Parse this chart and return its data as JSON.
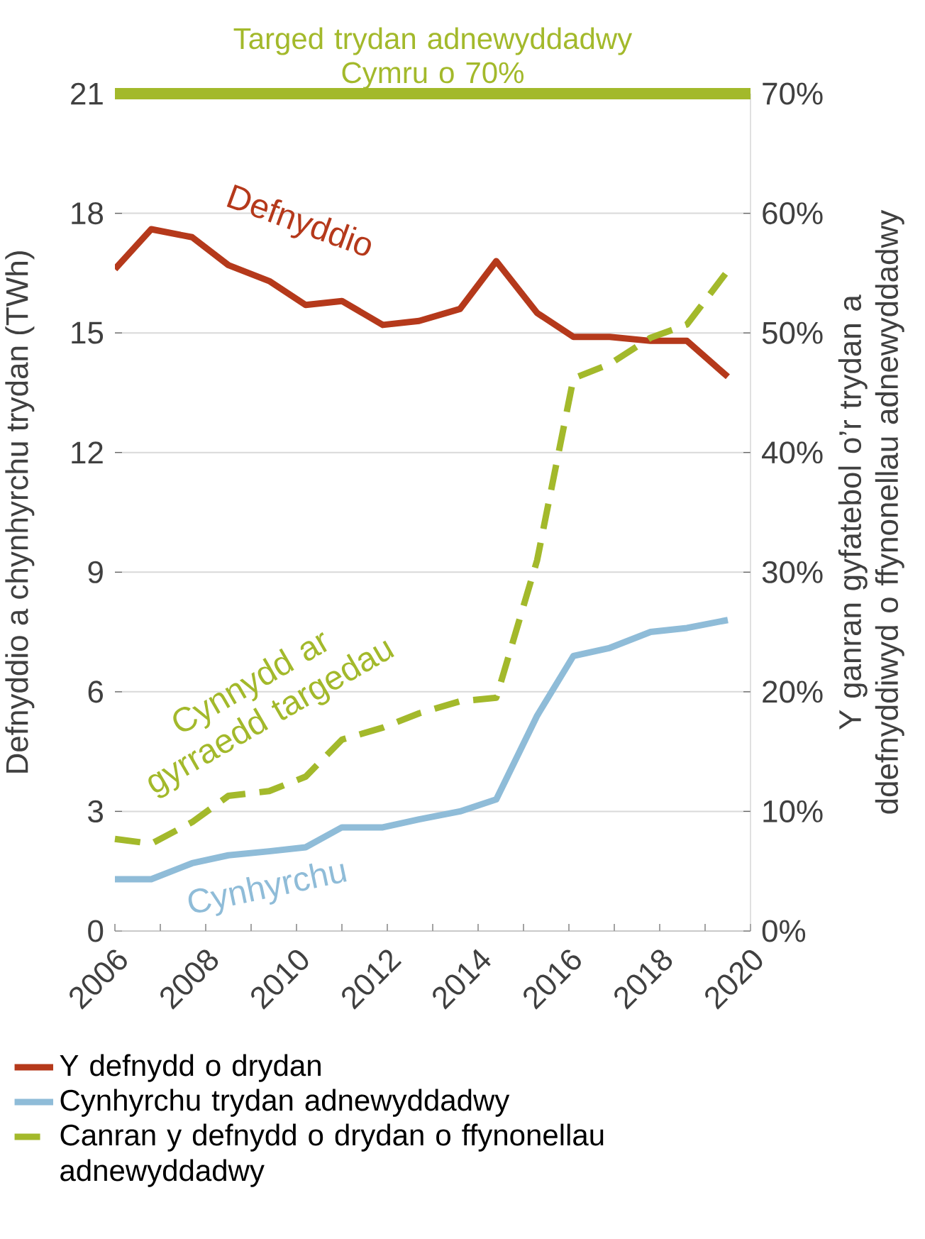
{
  "chart_data": {
    "type": "line",
    "ylabel": "Defnyddio a chynhyrchu trydan (TWh)",
    "y2label": "Y ganran gyfatebol o’r trydan a ddefnyddiwyd o ffynonellau adnewyddadwy",
    "x": [
      2006,
      2006.8,
      2007.7,
      2008.5,
      2009.4,
      2010.2,
      2011.0,
      2011.9,
      2012.7,
      2013.6,
      2014.4,
      2015.3,
      2016.1,
      2016.9,
      2017.8,
      2018.6,
      2019.5
    ],
    "series": [
      {
        "name": "Y defnydd o drydan",
        "color": "#b5391b",
        "values": [
          16.6,
          17.6,
          17.4,
          16.7,
          16.3,
          15.7,
          15.8,
          15.2,
          15.3,
          15.6,
          16.8,
          15.5,
          14.9,
          14.9,
          14.8,
          14.8,
          13.9
        ]
      },
      {
        "name": "Cynhyrchu trydan adnewyddadwy",
        "color": "#8fbcd8",
        "values": [
          1.3,
          1.3,
          1.7,
          1.9,
          2.0,
          2.1,
          2.6,
          2.6,
          2.8,
          3.0,
          3.3,
          5.4,
          6.9,
          7.1,
          7.5,
          7.6,
          7.8
        ]
      },
      {
        "name": "Canran y defnydd o drydan o ffynonellau adnewyddadwy",
        "color": "#a3b92b",
        "axis": "y2",
        "line_style": "dashed",
        "values": [
          7.7,
          7.3,
          9.1,
          11.3,
          11.7,
          12.9,
          16.0,
          17.0,
          18.2,
          19.2,
          19.5,
          31,
          46.2,
          47.4,
          49.6,
          50.7,
          55.2
        ]
      }
    ],
    "xlim": [
      2006,
      2020
    ],
    "xticks": [
      2006,
      {
        "value": 2007,
        "label": null
      },
      2008,
      {
        "value": 2009,
        "label": null
      },
      2010,
      {
        "value": 2011,
        "label": null
      },
      2012,
      {
        "value": 2013,
        "label": null
      },
      2014,
      {
        "value": 2015,
        "label": null
      },
      2016,
      {
        "value": 2017,
        "label": null
      },
      2018,
      {
        "value": 2019,
        "label": null
      },
      2020
    ],
    "ylim": [
      0,
      21
    ],
    "yticks": [
      0,
      3,
      6,
      9,
      12,
      15,
      18,
      21
    ],
    "y2lim": [
      0,
      70
    ],
    "y2ticks": [
      {
        "value": 0,
        "label": "0%"
      },
      {
        "value": 10,
        "label": "10%"
      },
      {
        "value": 20,
        "label": "20%"
      },
      {
        "value": 30,
        "label": "30%"
      },
      {
        "value": 40,
        "label": "40%"
      },
      {
        "value": 50,
        "label": "50%"
      },
      {
        "value": 60,
        "label": "60%"
      },
      {
        "value": 70,
        "label": "70%"
      }
    ],
    "ref_lines": [
      {
        "axis": "y2",
        "value": 70,
        "label": "Targed trydan adnewyddadwy Cymru o 70%",
        "color": "#a3b92b"
      }
    ],
    "annotations": [
      "Defnyddio",
      "Cynhyrchu",
      "Cynnydd ar gyrraedd targedau"
    ],
    "grid": "y",
    "legend": "bottom",
    "marker": "none"
  }
}
